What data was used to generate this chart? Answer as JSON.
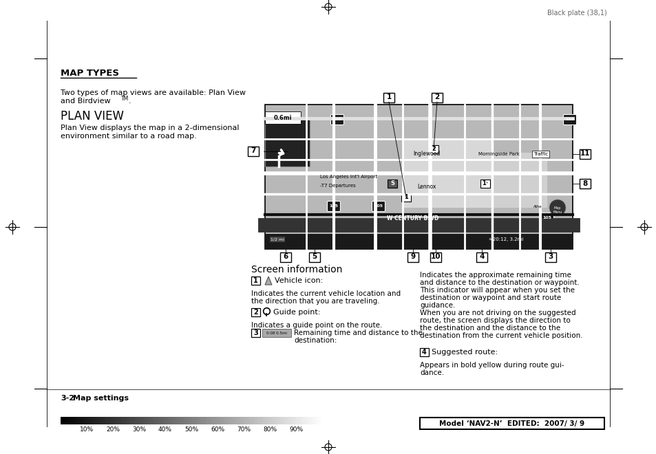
{
  "page_bg": "#ffffff",
  "top_text": "Black plate (38,1)",
  "section_title": "MAP TYPES",
  "intro_line1": "Two types of map views are available: Plan View",
  "intro_line2": "and Birdview",
  "intro_tm": "TM",
  "intro_period": ".",
  "subsection_title": "PLAN VIEW",
  "plan_view_desc1": "Plan View displays the map in a 2-dimensional",
  "plan_view_desc2": "environment similar to a road map.",
  "screen_info_title": "Screen information",
  "item1_label": "Vehicle icon:",
  "item1_desc1": "Indicates the current vehicle location and",
  "item1_desc2": "the direction that you are traveling.",
  "item2_label": "Guide point:",
  "item2_desc": "Indicates a guide point on the route.",
  "item3_desc1": "Remaining time and distance to the",
  "item3_desc2": "destination:",
  "right_col_lines": [
    "Indicates the approximate remaining time",
    "and distance to the destination or waypoint.",
    "This indicator will appear when you set the",
    "destination or waypoint and start route",
    "guidance.",
    "When you are not driving on the suggested",
    "route, the screen displays the direction to",
    "the destination and the distance to the",
    "destination from the current vehicle position."
  ],
  "item4_label": "Suggested route:",
  "item4_desc1": "Appears in bold yellow during route gui-",
  "item4_desc2": "dance.",
  "footer_num": "3-2",
  "footer_text": "Map settings",
  "footer_right": "Model ‘NAV2-N’  EDITED:  2007/ 3/ 9",
  "grayscale_labels": [
    "10%",
    "20%",
    "30%",
    "40%",
    "50%",
    "60%",
    "70%",
    "80%",
    "90%"
  ]
}
